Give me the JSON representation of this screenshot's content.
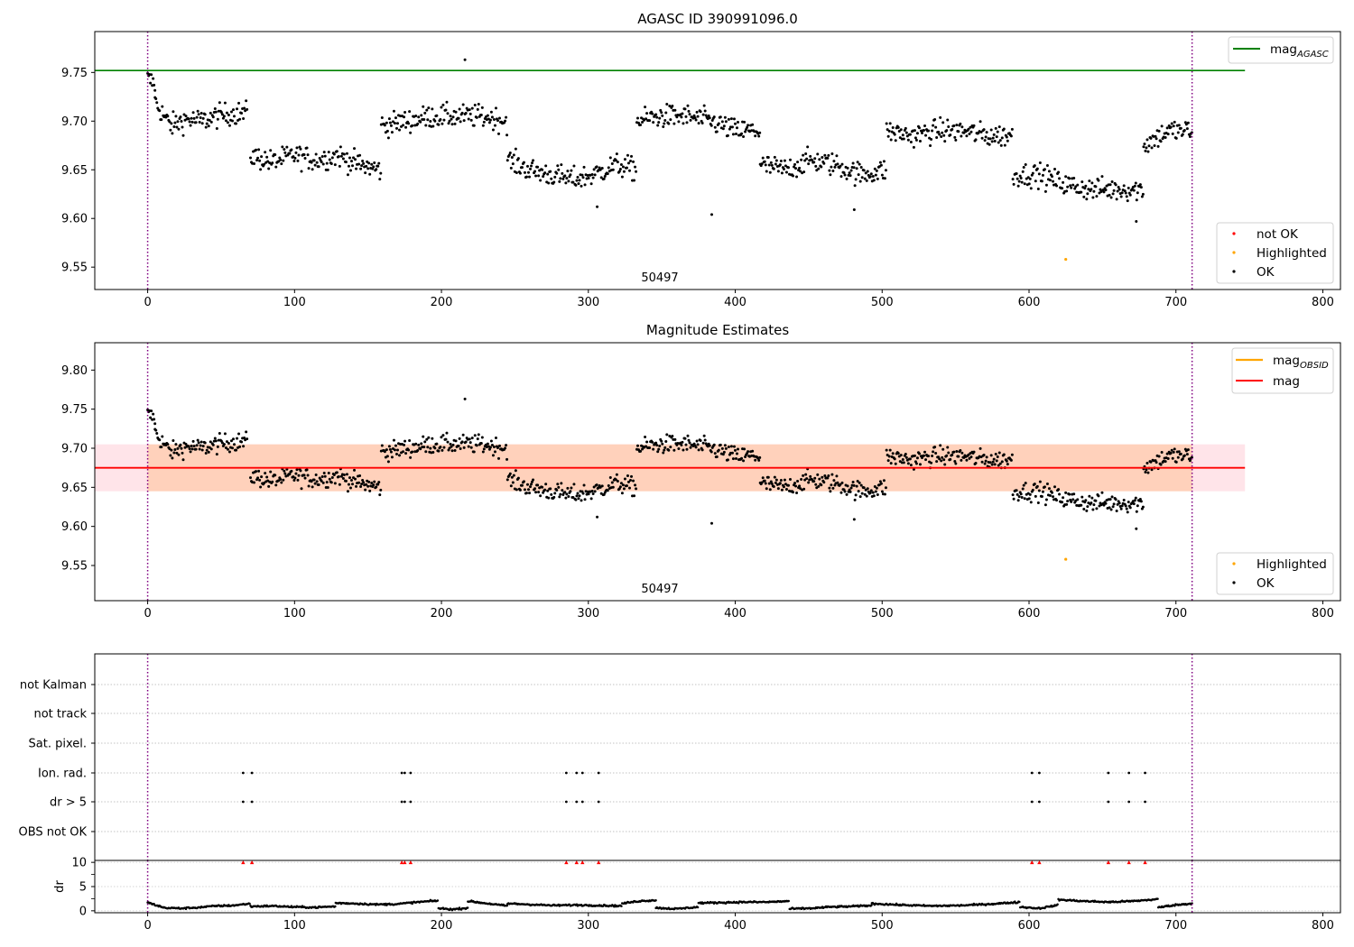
{
  "chart_data": [
    {
      "type": "scatter",
      "title": "AGASC ID 390991096.0",
      "xlim": [
        -36,
        812
      ],
      "ylim": [
        9.527,
        9.792
      ],
      "x_ticks": [
        0,
        100,
        200,
        300,
        400,
        500,
        600,
        700,
        800
      ],
      "y_ticks": [
        9.55,
        9.6,
        9.65,
        9.7,
        9.75
      ],
      "annotation": "50497",
      "vlines": [
        0,
        711
      ],
      "hline": {
        "label": "mag",
        "subscript": "AGASC",
        "value": 9.752,
        "x_range": [
          -36,
          747
        ],
        "color": "#008000"
      },
      "legend_top": [
        {
          "label": "mag",
          "subscript": "AGASC",
          "color": "#008000"
        }
      ],
      "legend_bottom": [
        {
          "label": "not OK",
          "color": "#ff0000"
        },
        {
          "label": "Highlighted",
          "color": "#ffa500"
        },
        {
          "label": "OK",
          "color": "#000000"
        }
      ],
      "highlighted_points": [
        [
          625,
          9.558
        ]
      ],
      "outlier_points": [
        [
          216,
          9.763
        ],
        [
          384,
          9.604
        ],
        [
          481,
          9.609
        ],
        [
          673,
          9.597
        ],
        [
          306,
          9.612
        ]
      ],
      "segments": [
        {
          "x0": 0,
          "x1": 5,
          "levels": [
            9.743,
            9.738
          ]
        },
        {
          "x0": 5,
          "x1": 68,
          "levels": [
            9.72,
            9.695,
            9.702,
            9.7,
            9.705,
            9.708,
            9.708
          ]
        },
        {
          "x0": 70,
          "x1": 159,
          "levels": [
            9.665,
            9.658,
            9.665,
            9.66,
            9.665,
            9.655,
            9.65
          ]
        },
        {
          "x0": 159,
          "x1": 245,
          "levels": [
            9.695,
            9.7,
            9.705,
            9.705,
            9.705,
            9.7
          ]
        },
        {
          "x0": 245,
          "x1": 333,
          "levels": [
            9.66,
            9.65,
            9.645,
            9.64,
            9.645,
            9.655,
            9.65
          ]
        },
        {
          "x0": 333,
          "x1": 417,
          "levels": [
            9.7,
            9.705,
            9.705,
            9.7,
            9.69,
            9.69
          ]
        },
        {
          "x0": 417,
          "x1": 503,
          "levels": [
            9.655,
            9.65,
            9.66,
            9.655,
            9.645,
            9.65
          ]
        },
        {
          "x0": 503,
          "x1": 589,
          "levels": [
            9.69,
            9.685,
            9.69,
            9.69,
            9.685,
            9.685
          ]
        },
        {
          "x0": 589,
          "x1": 678,
          "levels": [
            9.645,
            9.645,
            9.635,
            9.63,
            9.63,
            9.63
          ]
        },
        {
          "x0": 678,
          "x1": 711,
          "levels": [
            9.675,
            9.69,
            9.69
          ]
        }
      ]
    },
    {
      "type": "scatter",
      "title": "Magnitude Estimates",
      "xlim": [
        -36,
        812
      ],
      "ylim": [
        9.505,
        9.835
      ],
      "x_ticks": [
        0,
        100,
        200,
        300,
        400,
        500,
        600,
        700,
        800
      ],
      "y_ticks": [
        9.55,
        9.6,
        9.65,
        9.7,
        9.75,
        9.8
      ],
      "annotation": "50497",
      "vlines": [
        0,
        711
      ],
      "mag_line": {
        "value": 9.675,
        "color": "#ff0000"
      },
      "mag_band": {
        "low": 9.645,
        "high": 9.705,
        "x_range": [
          -36,
          747
        ]
      },
      "obsid_band": {
        "low": 9.645,
        "high": 9.705,
        "x_range": [
          0,
          711
        ]
      },
      "legend_top": [
        {
          "label": "mag",
          "subscript": "OBSID",
          "color": "#ffa500"
        },
        {
          "label": "mag",
          "subscript": "",
          "color": "#ff0000"
        }
      ],
      "legend_bottom": [
        {
          "label": "Highlighted",
          "color": "#ffa500"
        },
        {
          "label": "OK",
          "color": "#000000"
        }
      ]
    },
    {
      "type": "scatter",
      "flag_categories": [
        "not Kalman",
        "not track",
        "Sat. pixel.",
        "Ion. rad.",
        "dr > 5",
        "OBS not OK"
      ],
      "flag_points": {
        "Ion. rad.": [
          65,
          71,
          173,
          175,
          179,
          285,
          292,
          296,
          307,
          602,
          607,
          654,
          668,
          679
        ],
        "dr > 5": [
          65,
          71,
          173,
          175,
          179,
          285,
          292,
          296,
          307,
          602,
          607,
          654,
          668,
          679
        ]
      },
      "dr_panel": {
        "ylabel": "dr",
        "ylim": [
          -0.4,
          10.4
        ],
        "y_ticks": [
          0,
          5,
          10
        ],
        "clipped_x": [
          65,
          71,
          173,
          175,
          179,
          285,
          292,
          296,
          307,
          602,
          607,
          654,
          668,
          679
        ],
        "segments": [
          {
            "x0": 0,
            "x1": 70,
            "levels": [
              1.7,
              0.6,
              0.5,
              0.7,
              1.0,
              1.1,
              1.5
            ]
          },
          {
            "x0": 70,
            "x1": 128,
            "levels": [
              0.9,
              1.0,
              0.8,
              0.7,
              0.9
            ]
          },
          {
            "x0": 128,
            "x1": 198,
            "levels": [
              1.6,
              1.5,
              1.3,
              1.4,
              1.8,
              2.1
            ]
          },
          {
            "x0": 198,
            "x1": 218,
            "levels": [
              0.5,
              0.3,
              0.6
            ]
          },
          {
            "x0": 218,
            "x1": 245,
            "levels": [
              2.0,
              1.5,
              1.0
            ]
          },
          {
            "x0": 245,
            "x1": 323,
            "levels": [
              1.5,
              1.3,
              1.1,
              1.2,
              1.1,
              1.0
            ]
          },
          {
            "x0": 323,
            "x1": 346,
            "levels": [
              1.5,
              2.0,
              2.2
            ]
          },
          {
            "x0": 346,
            "x1": 375,
            "levels": [
              0.6,
              0.4,
              0.8
            ]
          },
          {
            "x0": 375,
            "x1": 437,
            "levels": [
              1.6,
              1.7,
              1.8,
              1.8,
              2.0
            ]
          },
          {
            "x0": 437,
            "x1": 493,
            "levels": [
              0.4,
              0.5,
              0.8,
              0.9,
              1.1
            ]
          },
          {
            "x0": 493,
            "x1": 594,
            "levels": [
              1.5,
              1.2,
              1.0,
              1.1,
              1.4,
              1.8
            ]
          },
          {
            "x0": 594,
            "x1": 620,
            "levels": [
              0.8,
              0.5,
              1.2
            ]
          },
          {
            "x0": 620,
            "x1": 688,
            "levels": [
              2.3,
              2.0,
              1.8,
              2.0,
              2.4
            ]
          },
          {
            "x0": 688,
            "x1": 711,
            "levels": [
              0.7,
              1.2,
              1.5
            ]
          }
        ]
      },
      "x_ticks": [
        0,
        100,
        200,
        300,
        400,
        500,
        600,
        700,
        800
      ],
      "xlim": [
        -36,
        812
      ],
      "vlines": [
        0,
        711
      ]
    }
  ]
}
